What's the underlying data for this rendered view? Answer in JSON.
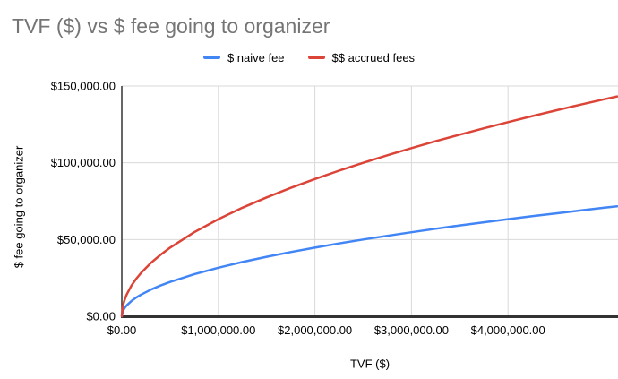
{
  "chart_data": {
    "type": "line",
    "title": "TVF ($) vs $ fee going to organizer",
    "xlabel": "TVF ($)",
    "ylabel": "$ fee going to organizer",
    "xlim": [
      0,
      5130000
    ],
    "ylim": [
      0,
      150000
    ],
    "grid": true,
    "legend_position": "top-center",
    "x_tick_values": [
      0,
      1000000,
      2000000,
      3000000,
      4000000
    ],
    "x_tick_labels": [
      "$0.00",
      "$1,000,000.00",
      "$2,000,000.00",
      "$3,000,000.00",
      "$4,000,000.00"
    ],
    "y_tick_values": [
      0,
      50000,
      100000,
      150000
    ],
    "y_tick_labels": [
      "$0.00",
      "$50,000.00",
      "$100,000.00",
      "$150,000.00"
    ],
    "x": [
      0,
      10000,
      25000,
      50000,
      100000,
      150000,
      200000,
      300000,
      400000,
      500000,
      750000,
      1000000,
      1250000,
      1500000,
      1750000,
      2000000,
      2250000,
      2500000,
      2750000,
      3000000,
      3250000,
      3500000,
      3750000,
      4000000,
      4250000,
      4500000,
      4750000,
      5000000,
      5130000
    ],
    "series": [
      {
        "name": "$ naive fee",
        "color": "#4285f4",
        "values": [
          0,
          3162,
          5000,
          7071,
          10000,
          12247,
          14142,
          17321,
          20000,
          22361,
          27386,
          31623,
          35355,
          38730,
          41833,
          44721,
          47434,
          50000,
          52440,
          54772,
          57009,
          59161,
          61237,
          63246,
          65192,
          67082,
          68920,
          70711,
          71624
        ]
      },
      {
        "name": "$$ accrued fees",
        "color": "#db4437",
        "values": [
          0,
          6325,
          10000,
          14142,
          20000,
          24495,
          28284,
          34641,
          40000,
          44721,
          54772,
          63246,
          70711,
          77460,
          83666,
          89443,
          94868,
          100000,
          104881,
          109545,
          114018,
          118322,
          122474,
          126491,
          130384,
          134164,
          137840,
          141421,
          143248
        ]
      }
    ]
  },
  "colors": {
    "title": "#757575",
    "axis_line": "#333333",
    "gridline": "#d9d9d9",
    "tick_label": "#000000",
    "background": "#ffffff"
  }
}
